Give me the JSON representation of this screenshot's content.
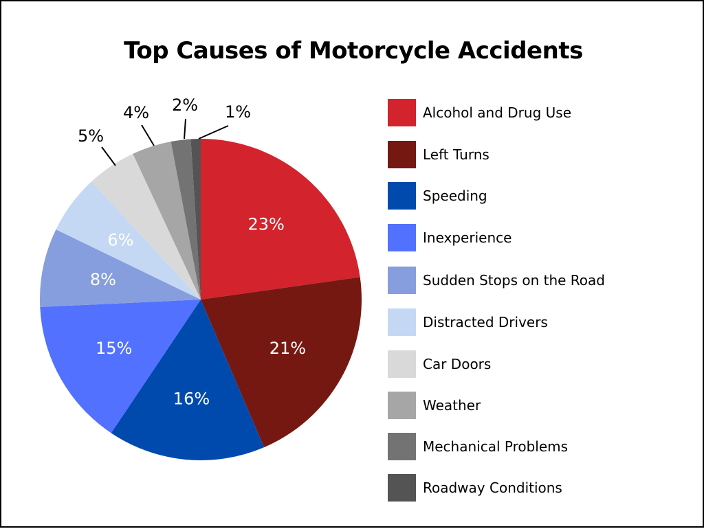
{
  "chart_data": {
    "type": "pie",
    "title": "Top Causes of Motorcycle Accidents",
    "slices": [
      {
        "name": "Alcohol and Drug Use",
        "value": 23,
        "label": "23%",
        "color": "#d3232c",
        "label_color": "#ffffff"
      },
      {
        "name": "Left Turns",
        "value": 21,
        "label": "21%",
        "color": "#761812",
        "label_color": "#ffffff"
      },
      {
        "name": "Speeding",
        "value": 16,
        "label": "16%",
        "color": "#004aad",
        "label_color": "#ffffff"
      },
      {
        "name": "Inexperience",
        "value": 15,
        "label": "15%",
        "color": "#5271ff",
        "label_color": "#ffffff"
      },
      {
        "name": "Sudden Stops on the Road",
        "value": 8,
        "label": "8%",
        "color": "#869edd",
        "label_color": "#ffffff"
      },
      {
        "name": "Distracted Drivers",
        "value": 6,
        "label": "6%",
        "color": "#c4d8f4",
        "label_color": "#ffffff"
      },
      {
        "name": "Car Doors",
        "value": 5,
        "label": "5%",
        "color": "#d9d9d9",
        "label_color": "#000000"
      },
      {
        "name": "Weather",
        "value": 4,
        "label": "4%",
        "color": "#a6a6a6",
        "label_color": "#000000"
      },
      {
        "name": "Mechanical Problems",
        "value": 2,
        "label": "2%",
        "color": "#737373",
        "label_color": "#000000"
      },
      {
        "name": "Roadway Conditions",
        "value": 1,
        "label": "1%",
        "color": "#545454",
        "label_color": "#000000"
      }
    ],
    "legend_position": "right"
  }
}
